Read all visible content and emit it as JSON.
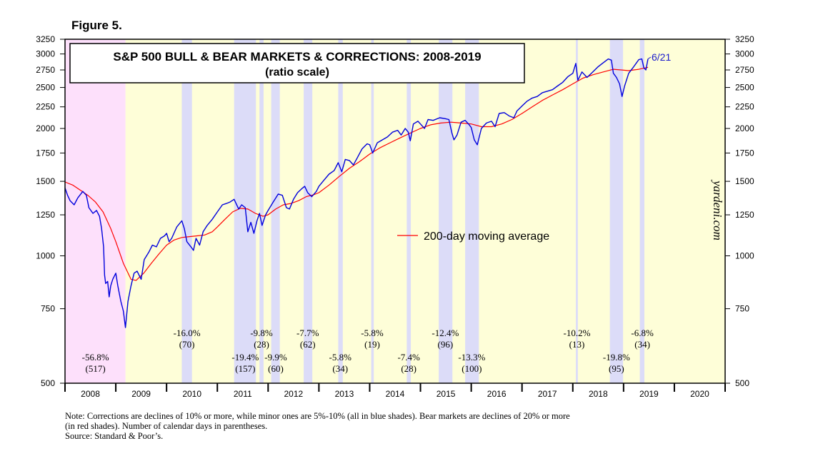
{
  "figure_label": "Figure 5.",
  "watermark": "yardeni.com",
  "note_lines": [
    "Note: Corrections are declines of 10% or more, while minor ones are 5%-10% (all in blue shades).  Bear markets are declines of 20% or more",
    "(in red shades). Number of calendar days in parentheses.",
    "Source: Standard & Poor’s."
  ],
  "colors": {
    "price": "#0000dd",
    "moving_average": "#ff0000",
    "bull_shade": "#fefed8",
    "correction_shade": "#dcdcf8",
    "bear_shade": "#fde0fb",
    "frame": "#000000"
  },
  "chart_data": {
    "type": "line",
    "title": "S&P 500 BULL & BEAR MARKETS & CORRECTIONS: 2008-2019",
    "subtitle": "(ratio scale)",
    "y_scale": "log",
    "ylim": [
      500,
      3250
    ],
    "y_ticks": [
      500,
      750,
      1000,
      1250,
      1500,
      1750,
      2000,
      2250,
      2500,
      2750,
      3000,
      3250
    ],
    "xlim": [
      2008.0,
      2021.0
    ],
    "x_tick_labels": [
      "2008",
      "2009",
      "2010",
      "2011",
      "2012",
      "2013",
      "2014",
      "2015",
      "2016",
      "2017",
      "2018",
      "2019",
      "2020"
    ],
    "latest_label": "6/21",
    "legend": [
      {
        "label": "200-day moving average",
        "color": "#ff0000",
        "position": "center-right"
      }
    ],
    "series": [
      {
        "name": "S&P 500",
        "color": "#0000dd",
        "points": [
          [
            2008.0,
            1447
          ],
          [
            2008.05,
            1390
          ],
          [
            2008.1,
            1350
          ],
          [
            2008.18,
            1320
          ],
          [
            2008.25,
            1370
          ],
          [
            2008.35,
            1420
          ],
          [
            2008.42,
            1390
          ],
          [
            2008.47,
            1300
          ],
          [
            2008.55,
            1260
          ],
          [
            2008.62,
            1280
          ],
          [
            2008.68,
            1240
          ],
          [
            2008.72,
            1160
          ],
          [
            2008.76,
            1050
          ],
          [
            2008.78,
            900
          ],
          [
            2008.8,
            860
          ],
          [
            2008.84,
            870
          ],
          [
            2008.87,
            800
          ],
          [
            2008.9,
            850
          ],
          [
            2008.94,
            880
          ],
          [
            2009.0,
            910
          ],
          [
            2009.04,
            850
          ],
          [
            2009.1,
            780
          ],
          [
            2009.15,
            740
          ],
          [
            2009.19,
            677
          ],
          [
            2009.24,
            780
          ],
          [
            2009.3,
            850
          ],
          [
            2009.36,
            910
          ],
          [
            2009.42,
            920
          ],
          [
            2009.5,
            880
          ],
          [
            2009.56,
            980
          ],
          [
            2009.65,
            1020
          ],
          [
            2009.72,
            1060
          ],
          [
            2009.8,
            1050
          ],
          [
            2009.88,
            1100
          ],
          [
            2009.96,
            1115
          ],
          [
            2010.0,
            1130
          ],
          [
            2010.05,
            1080
          ],
          [
            2010.1,
            1100
          ],
          [
            2010.2,
            1170
          ],
          [
            2010.3,
            1210
          ],
          [
            2010.35,
            1160
          ],
          [
            2010.4,
            1080
          ],
          [
            2010.48,
            1050
          ],
          [
            2010.53,
            1030
          ],
          [
            2010.58,
            1100
          ],
          [
            2010.65,
            1060
          ],
          [
            2010.72,
            1140
          ],
          [
            2010.8,
            1180
          ],
          [
            2010.9,
            1220
          ],
          [
            2011.0,
            1270
          ],
          [
            2011.1,
            1320
          ],
          [
            2011.18,
            1330
          ],
          [
            2011.25,
            1340
          ],
          [
            2011.33,
            1360
          ],
          [
            2011.42,
            1290
          ],
          [
            2011.48,
            1320
          ],
          [
            2011.55,
            1300
          ],
          [
            2011.6,
            1140
          ],
          [
            2011.66,
            1200
          ],
          [
            2011.72,
            1130
          ],
          [
            2011.78,
            1210
          ],
          [
            2011.83,
            1260
          ],
          [
            2011.88,
            1180
          ],
          [
            2011.95,
            1250
          ],
          [
            2012.0,
            1280
          ],
          [
            2012.1,
            1340
          ],
          [
            2012.2,
            1400
          ],
          [
            2012.28,
            1390
          ],
          [
            2012.36,
            1300
          ],
          [
            2012.42,
            1290
          ],
          [
            2012.5,
            1360
          ],
          [
            2012.58,
            1410
          ],
          [
            2012.66,
            1440
          ],
          [
            2012.72,
            1460
          ],
          [
            2012.78,
            1410
          ],
          [
            2012.86,
            1380
          ],
          [
            2012.95,
            1420
          ],
          [
            2013.0,
            1460
          ],
          [
            2013.1,
            1510
          ],
          [
            2013.2,
            1560
          ],
          [
            2013.3,
            1590
          ],
          [
            2013.38,
            1660
          ],
          [
            2013.45,
            1580
          ],
          [
            2013.52,
            1690
          ],
          [
            2013.6,
            1680
          ],
          [
            2013.68,
            1640
          ],
          [
            2013.75,
            1700
          ],
          [
            2013.85,
            1790
          ],
          [
            2013.95,
            1840
          ],
          [
            2014.0,
            1830
          ],
          [
            2014.06,
            1750
          ],
          [
            2014.15,
            1850
          ],
          [
            2014.25,
            1880
          ],
          [
            2014.35,
            1910
          ],
          [
            2014.45,
            1960
          ],
          [
            2014.55,
            1980
          ],
          [
            2014.62,
            1930
          ],
          [
            2014.7,
            2000
          ],
          [
            2014.76,
            1960
          ],
          [
            2014.8,
            1870
          ],
          [
            2014.86,
            2050
          ],
          [
            2014.95,
            2080
          ],
          [
            2015.0,
            2050
          ],
          [
            2015.08,
            2000
          ],
          [
            2015.15,
            2100
          ],
          [
            2015.25,
            2090
          ],
          [
            2015.38,
            2120
          ],
          [
            2015.48,
            2110
          ],
          [
            2015.56,
            2100
          ],
          [
            2015.62,
            1950
          ],
          [
            2015.66,
            1880
          ],
          [
            2015.72,
            1930
          ],
          [
            2015.8,
            2070
          ],
          [
            2015.88,
            2090
          ],
          [
            2015.96,
            2040
          ],
          [
            2016.0,
            2010
          ],
          [
            2016.06,
            1880
          ],
          [
            2016.12,
            1830
          ],
          [
            2016.2,
            2000
          ],
          [
            2016.3,
            2060
          ],
          [
            2016.4,
            2080
          ],
          [
            2016.47,
            2020
          ],
          [
            2016.55,
            2170
          ],
          [
            2016.65,
            2180
          ],
          [
            2016.75,
            2140
          ],
          [
            2016.84,
            2120
          ],
          [
            2016.9,
            2200
          ],
          [
            2017.0,
            2260
          ],
          [
            2017.1,
            2320
          ],
          [
            2017.2,
            2360
          ],
          [
            2017.3,
            2380
          ],
          [
            2017.4,
            2430
          ],
          [
            2017.5,
            2450
          ],
          [
            2017.6,
            2470
          ],
          [
            2017.7,
            2520
          ],
          [
            2017.8,
            2570
          ],
          [
            2017.9,
            2650
          ],
          [
            2018.0,
            2700
          ],
          [
            2018.06,
            2850
          ],
          [
            2018.1,
            2600
          ],
          [
            2018.18,
            2720
          ],
          [
            2018.28,
            2640
          ],
          [
            2018.38,
            2710
          ],
          [
            2018.5,
            2800
          ],
          [
            2018.6,
            2860
          ],
          [
            2018.7,
            2920
          ],
          [
            2018.76,
            2900
          ],
          [
            2018.8,
            2700
          ],
          [
            2018.86,
            2640
          ],
          [
            2018.92,
            2550
          ],
          [
            2018.97,
            2380
          ],
          [
            2019.02,
            2520
          ],
          [
            2019.1,
            2700
          ],
          [
            2019.2,
            2800
          ],
          [
            2019.3,
            2910
          ],
          [
            2019.36,
            2920
          ],
          [
            2019.4,
            2780
          ],
          [
            2019.44,
            2750
          ],
          [
            2019.48,
            2920
          ]
        ]
      },
      {
        "name": "200-day moving average",
        "color": "#ff0000",
        "points": [
          [
            2008.0,
            1495
          ],
          [
            2008.15,
            1470
          ],
          [
            2008.3,
            1430
          ],
          [
            2008.45,
            1390
          ],
          [
            2008.6,
            1340
          ],
          [
            2008.75,
            1270
          ],
          [
            2008.9,
            1160
          ],
          [
            2009.0,
            1080
          ],
          [
            2009.15,
            960
          ],
          [
            2009.3,
            880
          ],
          [
            2009.4,
            875
          ],
          [
            2009.55,
            910
          ],
          [
            2009.7,
            960
          ],
          [
            2009.85,
            1010
          ],
          [
            2010.0,
            1060
          ],
          [
            2010.15,
            1090
          ],
          [
            2010.3,
            1105
          ],
          [
            2010.45,
            1110
          ],
          [
            2010.6,
            1115
          ],
          [
            2010.75,
            1120
          ],
          [
            2010.9,
            1140
          ],
          [
            2011.0,
            1170
          ],
          [
            2011.15,
            1220
          ],
          [
            2011.3,
            1270
          ],
          [
            2011.45,
            1295
          ],
          [
            2011.6,
            1290
          ],
          [
            2011.75,
            1260
          ],
          [
            2011.9,
            1240
          ],
          [
            2012.0,
            1250
          ],
          [
            2012.15,
            1290
          ],
          [
            2012.3,
            1320
          ],
          [
            2012.45,
            1330
          ],
          [
            2012.6,
            1350
          ],
          [
            2012.75,
            1380
          ],
          [
            2012.9,
            1395
          ],
          [
            2013.0,
            1410
          ],
          [
            2013.2,
            1470
          ],
          [
            2013.4,
            1540
          ],
          [
            2013.6,
            1610
          ],
          [
            2013.8,
            1670
          ],
          [
            2014.0,
            1740
          ],
          [
            2014.2,
            1800
          ],
          [
            2014.4,
            1850
          ],
          [
            2014.6,
            1900
          ],
          [
            2014.8,
            1950
          ],
          [
            2015.0,
            2000
          ],
          [
            2015.2,
            2040
          ],
          [
            2015.4,
            2060
          ],
          [
            2015.6,
            2070
          ],
          [
            2015.8,
            2060
          ],
          [
            2016.0,
            2050
          ],
          [
            2016.2,
            2020
          ],
          [
            2016.4,
            2020
          ],
          [
            2016.6,
            2050
          ],
          [
            2016.8,
            2100
          ],
          [
            2017.0,
            2170
          ],
          [
            2017.2,
            2250
          ],
          [
            2017.4,
            2330
          ],
          [
            2017.6,
            2400
          ],
          [
            2017.8,
            2470
          ],
          [
            2018.0,
            2550
          ],
          [
            2018.2,
            2630
          ],
          [
            2018.4,
            2680
          ],
          [
            2018.6,
            2720
          ],
          [
            2018.8,
            2760
          ],
          [
            2018.95,
            2750
          ],
          [
            2019.1,
            2740
          ],
          [
            2019.3,
            2760
          ],
          [
            2019.48,
            2790
          ]
        ]
      }
    ],
    "regions": [
      {
        "kind": "bull",
        "start": 2009.19,
        "end": 2021.0
      },
      {
        "kind": "bear",
        "start": 2008.0,
        "end": 2009.19
      },
      {
        "kind": "correction",
        "start": 2010.3,
        "end": 2010.5
      },
      {
        "kind": "correction",
        "start": 2011.33,
        "end": 2011.76
      },
      {
        "kind": "correction",
        "start": 2011.83,
        "end": 2011.91
      },
      {
        "kind": "correction",
        "start": 2012.06,
        "end": 2012.23
      },
      {
        "kind": "correction",
        "start": 2012.7,
        "end": 2012.87
      },
      {
        "kind": "correction",
        "start": 2013.38,
        "end": 2013.47
      },
      {
        "kind": "correction",
        "start": 2014.03,
        "end": 2014.08
      },
      {
        "kind": "correction",
        "start": 2014.73,
        "end": 2014.81
      },
      {
        "kind": "correction",
        "start": 2015.36,
        "end": 2015.63
      },
      {
        "kind": "correction",
        "start": 2015.88,
        "end": 2016.15
      },
      {
        "kind": "correction",
        "start": 2018.06,
        "end": 2018.1
      },
      {
        "kind": "correction",
        "start": 2018.73,
        "end": 2018.99
      },
      {
        "kind": "correction",
        "start": 2019.32,
        "end": 2019.41
      }
    ],
    "annotations": [
      {
        "pct": "-56.8%",
        "days": "(517)",
        "x": 2008.6,
        "row": 2
      },
      {
        "pct": "-16.0%",
        "days": "(70)",
        "x": 2010.4,
        "row": 1
      },
      {
        "pct": "-19.4%",
        "days": "(157)",
        "x": 2011.55,
        "row": 2
      },
      {
        "pct": "-9.8%",
        "days": "(28)",
        "x": 2011.87,
        "row": 1
      },
      {
        "pct": "-9.9%",
        "days": "(60)",
        "x": 2012.15,
        "row": 2
      },
      {
        "pct": "-7.7%",
        "days": "(62)",
        "x": 2012.78,
        "row": 1
      },
      {
        "pct": "-5.8%",
        "days": "(34)",
        "x": 2013.42,
        "row": 2
      },
      {
        "pct": "-5.8%",
        "days": "(19)",
        "x": 2014.05,
        "row": 1
      },
      {
        "pct": "-7.4%",
        "days": "(28)",
        "x": 2014.77,
        "row": 2
      },
      {
        "pct": "-12.4%",
        "days": "(96)",
        "x": 2015.49,
        "row": 1
      },
      {
        "pct": "-13.3%",
        "days": "(100)",
        "x": 2016.01,
        "row": 2
      },
      {
        "pct": "-10.2%",
        "days": "(13)",
        "x": 2018.08,
        "row": 1
      },
      {
        "pct": "-19.8%",
        "days": "(95)",
        "x": 2018.86,
        "row": 2
      },
      {
        "pct": "-6.8%",
        "days": "(34)",
        "x": 2019.37,
        "row": 1
      }
    ]
  }
}
